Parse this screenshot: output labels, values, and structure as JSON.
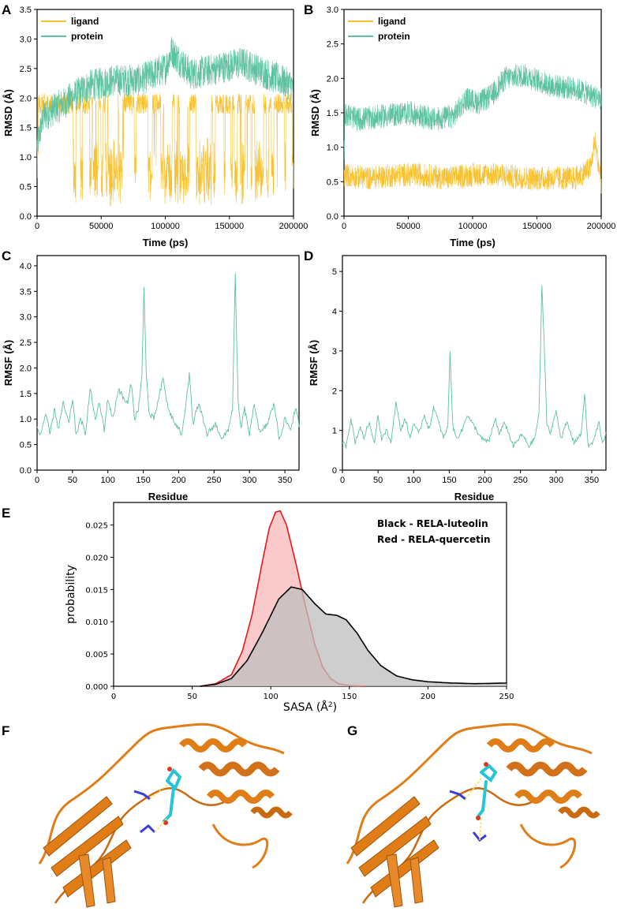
{
  "colors": {
    "ligand": "#f7c130",
    "protein": "#5cc2a2",
    "rmsf": "#5cc2a2",
    "red": "#e41a1c",
    "red_fill": "#f8b7b8",
    "black": "#000000",
    "grey_fill": "#bdbdbd",
    "cartoon": "#e07d17",
    "ligand_stick": "#27c4d7"
  },
  "chart_data": [
    {
      "panel": "A",
      "type": "line",
      "xlabel": "Time (ps)",
      "ylabel": "RMSD (Å)",
      "xlim": [
        0,
        200000
      ],
      "ylim": [
        0,
        3.5
      ],
      "xticks": [
        0,
        50000,
        100000,
        150000,
        200000
      ],
      "yticks": [
        0.0,
        0.5,
        1.0,
        1.5,
        2.0,
        2.5,
        3.0,
        3.5
      ],
      "ytick_labels": [
        "0.0",
        "0.5",
        "1.0",
        "1.5",
        "2.0",
        "2.5",
        "3.0",
        "3.5"
      ],
      "legend": [
        "ligand",
        "protein"
      ],
      "legend_position": "top-left",
      "series": [
        {
          "name": "ligand",
          "behavior": "switching between two states",
          "x": [
            0,
            10000,
            25000,
            30000,
            40000,
            55000,
            65000,
            75000,
            80000,
            100000,
            120000,
            140000,
            160000,
            180000,
            200000
          ],
          "y": [
            1.9,
            2.0,
            1.9,
            0.6,
            1.7,
            0.9,
            1.5,
            0.6,
            0.4,
            1.6,
            0.9,
            1.4,
            0.8,
            1.6,
            0.8
          ],
          "low_state": 0.3,
          "high_state": 1.9
        },
        {
          "name": "protein",
          "x": [
            0,
            5000,
            20000,
            40000,
            60000,
            80000,
            100000,
            105000,
            120000,
            140000,
            160000,
            180000,
            200000
          ],
          "y": [
            1.2,
            1.7,
            1.9,
            2.2,
            2.3,
            2.3,
            2.5,
            2.8,
            2.4,
            2.5,
            2.6,
            2.4,
            2.2
          ]
        }
      ]
    },
    {
      "panel": "B",
      "type": "line",
      "xlabel": "Time (ps)",
      "ylabel": "RMSD (Å)",
      "xlim": [
        0,
        200000
      ],
      "ylim": [
        0,
        3.0
      ],
      "xticks": [
        0,
        50000,
        100000,
        150000,
        200000
      ],
      "yticks": [
        0.0,
        0.5,
        1.0,
        1.5,
        2.0,
        2.5,
        3.0
      ],
      "ytick_labels": [
        "0.0",
        "0.5",
        "1.0",
        "1.5",
        "2.0",
        "2.5",
        "3.0"
      ],
      "legend": [
        "ligand",
        "protein"
      ],
      "legend_position": "top-left",
      "series": [
        {
          "name": "ligand",
          "x": [
            0,
            20000,
            40000,
            60000,
            80000,
            100000,
            120000,
            140000,
            160000,
            180000,
            192000,
            195000,
            200000
          ],
          "y": [
            0.6,
            0.55,
            0.6,
            0.6,
            0.55,
            0.6,
            0.6,
            0.55,
            0.55,
            0.55,
            0.7,
            1.1,
            0.5
          ]
        },
        {
          "name": "protein",
          "x": [
            0,
            10000,
            30000,
            50000,
            70000,
            85000,
            95000,
            105000,
            115000,
            125000,
            140000,
            160000,
            180000,
            200000
          ],
          "y": [
            1.5,
            1.4,
            1.45,
            1.5,
            1.4,
            1.45,
            1.7,
            1.65,
            1.75,
            2.0,
            2.05,
            1.9,
            1.85,
            1.7
          ]
        }
      ]
    },
    {
      "panel": "C",
      "type": "line",
      "xlabel": "Residue",
      "ylabel": "RMSF (Å)",
      "xlim": [
        0,
        370
      ],
      "ylim": [
        0,
        4.2
      ],
      "xticks": [
        0,
        50,
        100,
        150,
        200,
        250,
        300,
        350
      ],
      "yticks": [
        0.0,
        0.5,
        1.0,
        1.5,
        2.0,
        2.5,
        3.0,
        3.5,
        4.0
      ],
      "ytick_labels": [
        "0.0",
        "0.5",
        "1.0",
        "1.5",
        "2.0",
        "2.5",
        "3.0",
        "3.5",
        "4.0"
      ],
      "series": [
        {
          "name": "RMSF",
          "x": [
            0,
            5,
            12,
            18,
            25,
            30,
            37,
            45,
            50,
            55,
            62,
            68,
            75,
            82,
            88,
            95,
            100,
            107,
            115,
            122,
            128,
            133,
            138,
            143,
            148,
            151,
            154,
            158,
            165,
            172,
            178,
            185,
            195,
            205,
            215,
            220,
            228,
            240,
            252,
            262,
            270,
            276,
            280,
            284,
            288,
            293,
            300,
            307,
            315,
            325,
            335,
            342,
            350,
            358,
            365,
            370
          ],
          "y": [
            0.8,
            0.7,
            1.1,
            0.7,
            1.2,
            0.8,
            1.3,
            0.9,
            1.4,
            0.7,
            1.0,
            0.7,
            1.6,
            1.0,
            1.3,
            0.8,
            1.4,
            1.0,
            1.6,
            1.4,
            1.3,
            1.7,
            1.0,
            1.2,
            1.8,
            3.6,
            2.0,
            1.1,
            1.0,
            1.4,
            1.8,
            1.2,
            0.9,
            0.7,
            1.9,
            0.9,
            1.3,
            0.7,
            0.9,
            0.6,
            0.8,
            1.2,
            3.8,
            1.3,
            0.8,
            1.2,
            0.7,
            1.3,
            0.7,
            0.9,
            1.3,
            0.6,
            1.0,
            0.8,
            1.2,
            0.9
          ]
        }
      ]
    },
    {
      "panel": "D",
      "type": "line",
      "xlabel": "Residue",
      "ylabel": "RMSF (Å)",
      "xlim": [
        0,
        370
      ],
      "ylim": [
        0,
        5.4
      ],
      "xticks": [
        0,
        50,
        100,
        150,
        200,
        250,
        300,
        350
      ],
      "yticks": [
        0,
        1,
        2,
        3,
        4,
        5
      ],
      "ytick_labels": [
        "0",
        "1",
        "2",
        "3",
        "4",
        "5"
      ],
      "series": [
        {
          "name": "RMSF",
          "x": [
            0,
            5,
            12,
            18,
            25,
            30,
            37,
            45,
            50,
            55,
            62,
            68,
            75,
            82,
            88,
            95,
            100,
            107,
            115,
            122,
            128,
            135,
            142,
            148,
            151,
            155,
            160,
            168,
            175,
            185,
            195,
            205,
            215,
            220,
            228,
            240,
            252,
            262,
            270,
            276,
            280,
            283,
            287,
            292,
            300,
            307,
            315,
            325,
            335,
            340,
            345,
            352,
            360,
            365,
            370
          ],
          "y": [
            0.7,
            0.6,
            1.3,
            0.7,
            1.1,
            0.8,
            1.2,
            0.7,
            1.4,
            0.8,
            1.0,
            0.7,
            1.7,
            1.0,
            1.3,
            0.8,
            1.2,
            0.9,
            1.4,
            1.0,
            1.6,
            1.2,
            0.8,
            1.1,
            3.0,
            1.1,
            0.8,
            1.0,
            1.4,
            1.1,
            0.8,
            0.7,
            1.3,
            0.9,
            1.2,
            0.6,
            0.9,
            0.6,
            0.8,
            1.4,
            4.6,
            3.3,
            1.2,
            0.9,
            1.5,
            0.8,
            1.2,
            0.7,
            0.9,
            1.9,
            0.6,
            0.7,
            1.2,
            0.7,
            0.9
          ]
        }
      ]
    },
    {
      "panel": "E",
      "type": "area",
      "xlabel": "SASA (Å",
      "xlabel_sup": "2",
      "xlabel_end": ")",
      "ylabel": "probability",
      "xlim": [
        0,
        250
      ],
      "ylim": [
        0,
        0.0285
      ],
      "xticks": [
        0,
        50,
        100,
        150,
        200,
        250
      ],
      "yticks": [
        0.0,
        0.005,
        0.01,
        0.015,
        0.02,
        0.025
      ],
      "ytick_labels": [
        "0.000",
        "0.005",
        "0.010",
        "0.015",
        "0.020",
        "0.025"
      ],
      "annotations": [
        "Black - RELA-luteolin",
        "Red - RELA-quercetin"
      ],
      "series": [
        {
          "name": "RELA-luteolin",
          "x": [
            55,
            65,
            75,
            85,
            95,
            105,
            113,
            120,
            128,
            135,
            142,
            148,
            155,
            162,
            170,
            180,
            190,
            200,
            215,
            230,
            250
          ],
          "y": [
            0.0,
            0.0003,
            0.0012,
            0.004,
            0.0085,
            0.0135,
            0.0154,
            0.015,
            0.0128,
            0.0112,
            0.011,
            0.0103,
            0.0082,
            0.0055,
            0.0032,
            0.0016,
            0.001,
            0.0007,
            0.0005,
            0.0004,
            0.0005
          ]
        },
        {
          "name": "RELA-quercetin",
          "x": [
            55,
            65,
            75,
            82,
            88,
            94,
            99,
            103,
            106,
            110,
            116,
            122,
            128,
            133,
            138,
            143,
            150,
            160
          ],
          "y": [
            0.0,
            0.0004,
            0.0018,
            0.0055,
            0.011,
            0.0185,
            0.0245,
            0.027,
            0.0272,
            0.025,
            0.019,
            0.0125,
            0.0065,
            0.003,
            0.0012,
            0.0004,
            0.0001,
            0.0
          ]
        }
      ]
    }
  ],
  "panel_labels": {
    "A": "A",
    "B": "B",
    "C": "C",
    "D": "D",
    "E": "E",
    "F": "F",
    "G": "G"
  }
}
